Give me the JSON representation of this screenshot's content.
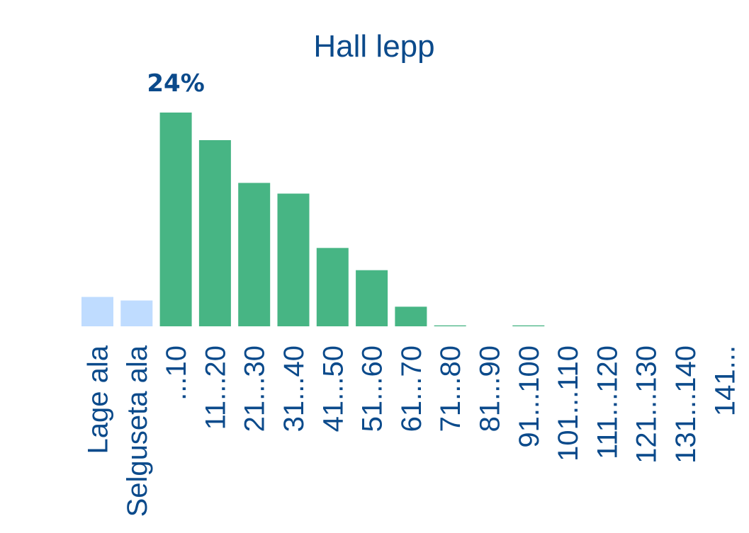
{
  "chart_data": {
    "type": "bar",
    "title": "Hall lepp",
    "xlabel": "",
    "ylabel": "",
    "ylim": [
      0,
      24
    ],
    "grid": false,
    "legend": "none",
    "categories": [
      "Lage ala",
      "Selguseta ala",
      "...10",
      "11...20",
      "21...30",
      "31...40",
      "41...50",
      "51...60",
      "61...70",
      "71...80",
      "81...90",
      "91...100",
      "101...110",
      "111...120",
      "121...130",
      "131...140",
      "141..."
    ],
    "values": [
      3.3,
      2.9,
      24,
      20.9,
      16.1,
      14.9,
      8.8,
      6.3,
      2.2,
      0.1,
      0,
      0.1,
      0,
      0,
      0,
      0,
      0
    ],
    "bar_colors": [
      "#bfdcff",
      "#bfdcff",
      "#47b584",
      "#47b584",
      "#47b584",
      "#47b584",
      "#47b584",
      "#47b584",
      "#47b584",
      "#47b584",
      "#47b584",
      "#47b584",
      "#47b584",
      "#47b584",
      "#47b584",
      "#47b584",
      "#47b584"
    ],
    "annotations": [
      {
        "category": "...10",
        "text": "24%"
      }
    ]
  },
  "colors": {
    "text": "#0b4a8b",
    "bar_primary": "#47b584",
    "bar_secondary": "#bfdcff",
    "background": "#ffffff"
  }
}
